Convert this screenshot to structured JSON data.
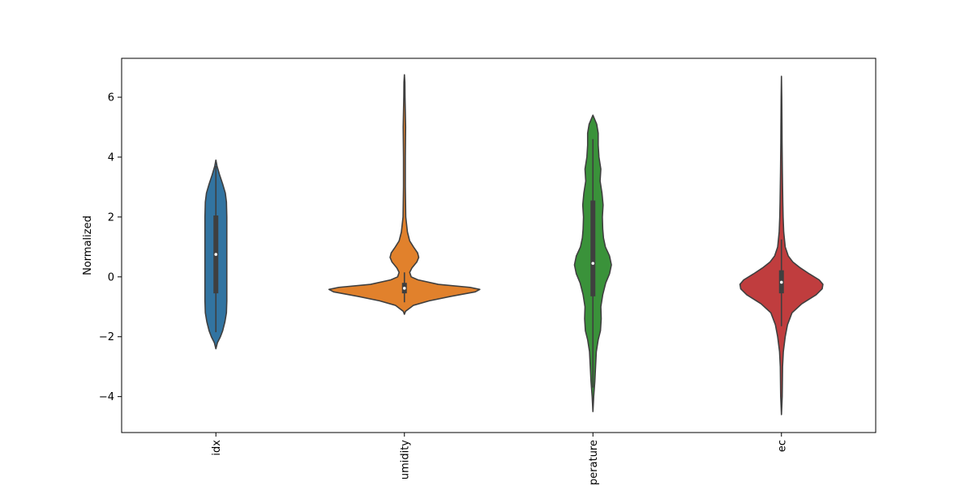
{
  "chart_data": {
    "type": "violin",
    "title": "",
    "xlabel": "",
    "ylabel": "Normalized",
    "ylim": [
      -5.2,
      7.3
    ],
    "yticks": [
      -4,
      -2,
      0,
      2,
      4,
      6
    ],
    "ytick_labels": [
      "−4",
      "−2",
      "0",
      "2",
      "4",
      "6"
    ],
    "grid": false,
    "legend": "none",
    "categories": [
      "idx",
      "humidity",
      "temperature",
      "ec"
    ],
    "visible_category_labels": [
      "idx",
      "umidity",
      "perature",
      "ec"
    ],
    "series": [
      {
        "category": "idx",
        "color": "#3274a1",
        "min": -2.4,
        "max": 3.9,
        "q1": -0.55,
        "median": 0.75,
        "q3": 2.05,
        "whisker_low": -1.85,
        "whisker_high": 3.7,
        "density": [
          [
            -2.4,
            0.0
          ],
          [
            -2.2,
            0.02
          ],
          [
            -2.0,
            0.06
          ],
          [
            -1.8,
            0.09
          ],
          [
            -1.5,
            0.12
          ],
          [
            -1.2,
            0.14
          ],
          [
            -0.8,
            0.145
          ],
          [
            0.0,
            0.145
          ],
          [
            1.0,
            0.145
          ],
          [
            2.0,
            0.145
          ],
          [
            2.5,
            0.14
          ],
          [
            2.8,
            0.125
          ],
          [
            3.1,
            0.09
          ],
          [
            3.4,
            0.05
          ],
          [
            3.7,
            0.015
          ],
          [
            3.9,
            0.0
          ]
        ]
      },
      {
        "category": "humidity",
        "color": "#e1812c",
        "min": -1.25,
        "max": 6.75,
        "q1": -0.55,
        "median": -0.38,
        "q3": -0.2,
        "whisker_low": -0.85,
        "whisker_high": 0.15,
        "density": [
          [
            -1.25,
            0.0
          ],
          [
            -1.15,
            0.015
          ],
          [
            -0.95,
            0.12
          ],
          [
            -0.8,
            0.33
          ],
          [
            -0.65,
            0.62
          ],
          [
            -0.5,
            0.94
          ],
          [
            -0.42,
            1.0
          ],
          [
            -0.35,
            0.87
          ],
          [
            -0.25,
            0.45
          ],
          [
            -0.1,
            0.18
          ],
          [
            0.0,
            0.09
          ],
          [
            0.15,
            0.07
          ],
          [
            0.3,
            0.1
          ],
          [
            0.5,
            0.165
          ],
          [
            0.65,
            0.19
          ],
          [
            0.8,
            0.175
          ],
          [
            1.0,
            0.12
          ],
          [
            1.2,
            0.07
          ],
          [
            1.5,
            0.04
          ],
          [
            2.0,
            0.018
          ],
          [
            3.0,
            0.012
          ],
          [
            4.0,
            0.012
          ],
          [
            5.0,
            0.016
          ],
          [
            5.5,
            0.012
          ],
          [
            6.0,
            0.008
          ],
          [
            6.5,
            0.006
          ],
          [
            6.75,
            0.0
          ]
        ]
      },
      {
        "category": "temperature",
        "color": "#3a923a",
        "min": -4.5,
        "max": 5.4,
        "q1": -0.65,
        "median": 0.45,
        "q3": 2.55,
        "whisker_low": -3.7,
        "whisker_high": 4.6,
        "density": [
          [
            -4.5,
            0.0
          ],
          [
            -4.0,
            0.01
          ],
          [
            -3.5,
            0.025
          ],
          [
            -3.0,
            0.035
          ],
          [
            -2.5,
            0.045
          ],
          [
            -2.1,
            0.07
          ],
          [
            -1.8,
            0.1
          ],
          [
            -1.4,
            0.11
          ],
          [
            -1.0,
            0.105
          ],
          [
            -0.6,
            0.13
          ],
          [
            -0.2,
            0.17
          ],
          [
            0.1,
            0.22
          ],
          [
            0.4,
            0.245
          ],
          [
            0.7,
            0.22
          ],
          [
            1.0,
            0.165
          ],
          [
            1.3,
            0.14
          ],
          [
            1.6,
            0.13
          ],
          [
            2.0,
            0.125
          ],
          [
            2.4,
            0.135
          ],
          [
            2.8,
            0.12
          ],
          [
            3.2,
            0.095
          ],
          [
            3.6,
            0.105
          ],
          [
            4.0,
            0.08
          ],
          [
            4.4,
            0.07
          ],
          [
            4.8,
            0.07
          ],
          [
            5.1,
            0.05
          ],
          [
            5.4,
            0.0
          ]
        ]
      },
      {
        "category": "ec",
        "color": "#c03d3e",
        "min": -4.6,
        "max": 6.7,
        "q1": -0.55,
        "median": -0.18,
        "q3": 0.22,
        "whisker_low": -1.65,
        "whisker_high": 1.25,
        "density": [
          [
            -4.6,
            0.0
          ],
          [
            -4.0,
            0.01
          ],
          [
            -3.0,
            0.015
          ],
          [
            -2.5,
            0.025
          ],
          [
            -2.0,
            0.05
          ],
          [
            -1.6,
            0.08
          ],
          [
            -1.2,
            0.14
          ],
          [
            -0.9,
            0.27
          ],
          [
            -0.6,
            0.46
          ],
          [
            -0.4,
            0.54
          ],
          [
            -0.25,
            0.55
          ],
          [
            -0.1,
            0.5
          ],
          [
            0.1,
            0.37
          ],
          [
            0.3,
            0.25
          ],
          [
            0.5,
            0.15
          ],
          [
            0.7,
            0.09
          ],
          [
            1.0,
            0.05
          ],
          [
            1.5,
            0.03
          ],
          [
            2.0,
            0.022
          ],
          [
            2.5,
            0.018
          ],
          [
            3.0,
            0.015
          ],
          [
            3.5,
            0.012
          ],
          [
            4.0,
            0.01
          ],
          [
            4.5,
            0.008
          ],
          [
            5.0,
            0.007
          ],
          [
            6.0,
            0.004
          ],
          [
            6.7,
            0.0
          ]
        ]
      }
    ]
  }
}
